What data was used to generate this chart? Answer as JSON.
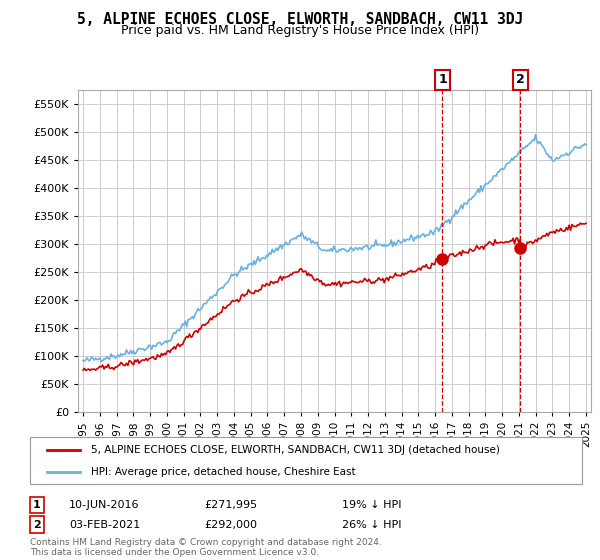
{
  "title": "5, ALPINE ECHOES CLOSE, ELWORTH, SANDBACH, CW11 3DJ",
  "subtitle": "Price paid vs. HM Land Registry's House Price Index (HPI)",
  "legend_line1": "5, ALPINE ECHOES CLOSE, ELWORTH, SANDBACH, CW11 3DJ (detached house)",
  "legend_line2": "HPI: Average price, detached house, Cheshire East",
  "footnote": "Contains HM Land Registry data © Crown copyright and database right 2024.\nThis data is licensed under the Open Government Licence v3.0.",
  "annotation1": {
    "label": "1",
    "date": "10-JUN-2016",
    "price": "£271,995",
    "note": "19% ↓ HPI"
  },
  "annotation2": {
    "label": "2",
    "date": "03-FEB-2021",
    "price": "£292,000",
    "note": "26% ↓ HPI"
  },
  "hpi_color": "#6ab0e0",
  "price_color": "#cc0000",
  "annotation_color": "#cc0000",
  "background_color": "#ffffff",
  "grid_color": "#cccccc",
  "ylim": [
    0,
    575000
  ],
  "yticks": [
    0,
    50000,
    100000,
    150000,
    200000,
    250000,
    300000,
    350000,
    400000,
    450000,
    500000,
    550000
  ],
  "xlabel_start_year": 1995,
  "xlabel_end_year": 2025
}
